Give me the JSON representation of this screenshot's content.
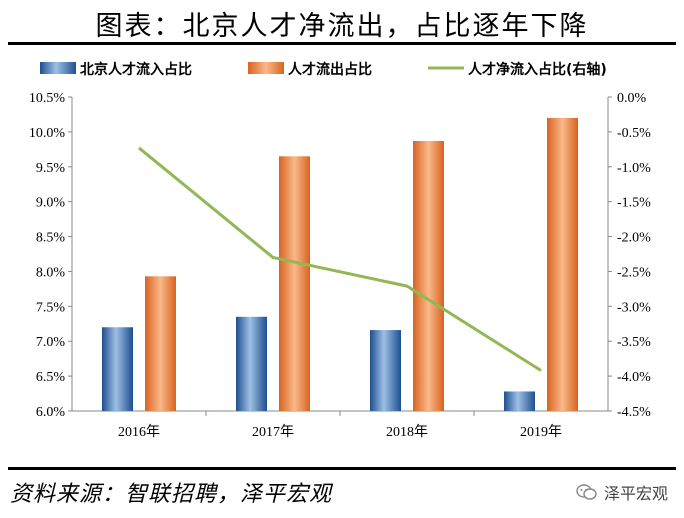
{
  "title": "图表：北京人才净流出，占比逐年下降",
  "source": "资料来源：智联招聘，泽平宏观",
  "watermark": "泽平宏观",
  "colors": {
    "inflow": "#2e6bb5",
    "outflow": "#ee7d31",
    "net": "#92b755"
  },
  "chart_data": {
    "type": "bar",
    "categories": [
      "2016年",
      "2017年",
      "2018年",
      "2019年"
    ],
    "series": [
      {
        "name": "北京人才流入占比",
        "type": "bar",
        "axis": "left",
        "values": [
          7.2,
          7.35,
          7.16,
          6.28
        ]
      },
      {
        "name": "人才流出占比",
        "type": "bar",
        "axis": "left",
        "values": [
          7.93,
          9.65,
          9.87,
          10.2
        ]
      },
      {
        "name": "人才净流入占比(右轴)",
        "type": "line",
        "axis": "right",
        "values": [
          -0.73,
          -2.3,
          -2.71,
          -3.92
        ]
      }
    ],
    "y_left": {
      "min": 6.0,
      "max": 10.5,
      "step": 0.5,
      "ticks": [
        "6.0%",
        "6.5%",
        "7.0%",
        "7.5%",
        "8.0%",
        "8.5%",
        "9.0%",
        "9.5%",
        "10.0%",
        "10.5%"
      ]
    },
    "y_right": {
      "min": -4.5,
      "max": 0.0,
      "step": 0.5,
      "ticks": [
        "-4.5%",
        "-4.0%",
        "-3.5%",
        "-3.0%",
        "-2.5%",
        "-2.0%",
        "-1.5%",
        "-1.0%",
        "-0.5%",
        "0.0%"
      ]
    },
    "legend_position": "top",
    "grid": false
  }
}
